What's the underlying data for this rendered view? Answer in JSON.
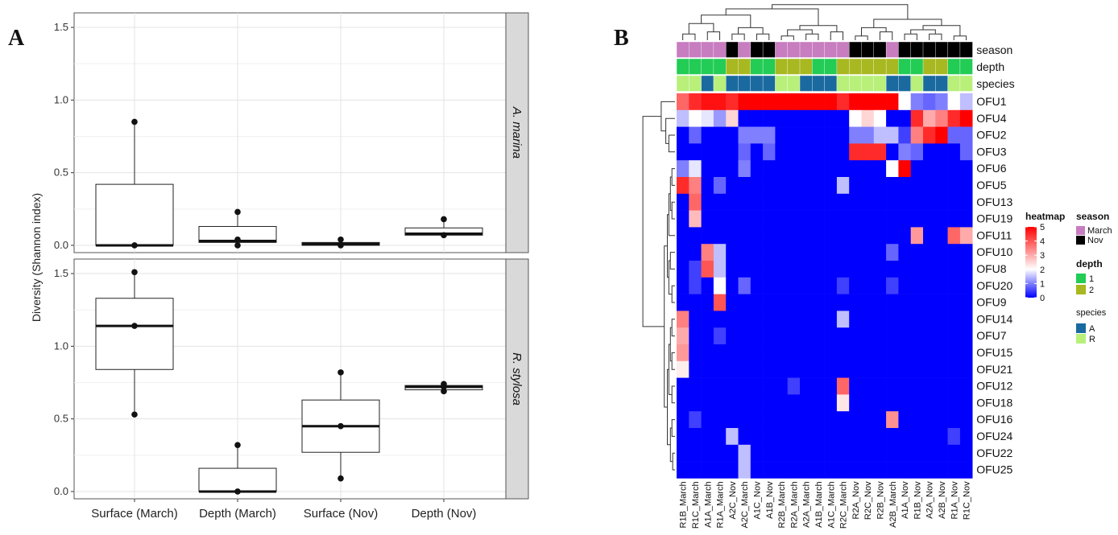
{
  "panels": {
    "a": "A",
    "b": "B"
  },
  "chart_data": [
    {
      "type": "box",
      "ylabel": "Diversity (Shannon index)",
      "ylim": [
        -0.05,
        1.6
      ],
      "yticks": [
        "0.0",
        "0.5",
        "1.0",
        "1.5"
      ],
      "categories": [
        "Surface (March)",
        "Depth (March)",
        "Surface (Nov)",
        "Depth (Nov)"
      ],
      "facets": [
        {
          "name": "A. marina",
          "boxes": [
            {
              "q1": 0.0,
              "median": 0.0,
              "q3": 0.42,
              "whisker_low": 0.0,
              "whisker_high": 0.85,
              "points": [
                0.85,
                0.0
              ]
            },
            {
              "q1": 0.02,
              "median": 0.03,
              "q3": 0.13,
              "whisker_low": 0.0,
              "whisker_high": 0.23,
              "points": [
                0.23,
                0.04,
                0.0
              ]
            },
            {
              "q1": 0.0,
              "median": 0.01,
              "q3": 0.02,
              "whisker_low": 0.0,
              "whisker_high": 0.04,
              "points": [
                0.04,
                0.0
              ]
            },
            {
              "q1": 0.07,
              "median": 0.08,
              "q3": 0.12,
              "whisker_low": 0.07,
              "whisker_high": 0.18,
              "points": [
                0.18,
                0.07
              ]
            }
          ]
        },
        {
          "name": "R. stylosa",
          "boxes": [
            {
              "q1": 0.84,
              "median": 1.14,
              "q3": 1.33,
              "whisker_low": 0.53,
              "whisker_high": 1.51,
              "points": [
                1.51,
                1.14,
                0.53
              ]
            },
            {
              "q1": 0.0,
              "median": 0.0,
              "q3": 0.16,
              "whisker_low": 0.0,
              "whisker_high": 0.32,
              "points": [
                0.32,
                0.0
              ]
            },
            {
              "q1": 0.27,
              "median": 0.45,
              "q3": 0.63,
              "whisker_low": 0.09,
              "whisker_high": 0.82,
              "points": [
                0.82,
                0.45,
                0.09
              ]
            },
            {
              "q1": 0.7,
              "median": 0.72,
              "q3": 0.73,
              "whisker_low": 0.69,
              "whisker_high": 0.74,
              "points": [
                0.74,
                0.72,
                0.69
              ]
            }
          ]
        }
      ]
    },
    {
      "type": "heatmap",
      "columns": [
        "R1B_March",
        "R1C_March",
        "A1A_March",
        "R1A_March",
        "A2C_Nov",
        "A2C_March",
        "A1C_Nov",
        "A1B_Nov",
        "R2B_March",
        "R2A_March",
        "A2A_March",
        "A1B_March",
        "A1C_March",
        "R2C_March",
        "R2A_Nov",
        "R2C_Nov",
        "R2B_Nov",
        "A2B_March",
        "A1A_Nov",
        "R1B_Nov",
        "A2A_Nov",
        "A2B_Nov",
        "R1A_Nov",
        "R1C_Nov"
      ],
      "rows": [
        "OFU1",
        "OFU4",
        "OFU2",
        "OFU3",
        "OFU6",
        "OFU5",
        "OFU13",
        "OFU19",
        "OFU11",
        "OFU10",
        "OFU8",
        "OFU20",
        "OFU9",
        "OFU14",
        "OFU7",
        "OFU15",
        "OFU21",
        "OFU12",
        "OFU18",
        "OFU16",
        "OFU24",
        "OFU22",
        "OFU25"
      ],
      "annotations": [
        {
          "name": "season",
          "values": [
            "March",
            "March",
            "March",
            "March",
            "Nov",
            "March",
            "Nov",
            "Nov",
            "March",
            "March",
            "March",
            "March",
            "March",
            "March",
            "Nov",
            "Nov",
            "Nov",
            "March",
            "Nov",
            "Nov",
            "Nov",
            "Nov",
            "Nov",
            "Nov"
          ]
        },
        {
          "name": "depth",
          "values": [
            "1",
            "1",
            "1",
            "1",
            "2",
            "2",
            "1",
            "1",
            "2",
            "2",
            "2",
            "1",
            "1",
            "2",
            "2",
            "2",
            "2",
            "2",
            "1",
            "1",
            "2",
            "2",
            "1",
            "1"
          ]
        },
        {
          "name": "species",
          "values": [
            "R",
            "R",
            "A",
            "R",
            "A",
            "A",
            "A",
            "A",
            "R",
            "R",
            "A",
            "A",
            "A",
            "R",
            "R",
            "R",
            "R",
            "A",
            "A",
            "R",
            "A",
            "A",
            "R",
            "R"
          ]
        }
      ],
      "legend": {
        "heatmap_title": "heatmap",
        "scale_ticks": [
          5,
          4,
          3,
          2,
          1,
          0
        ],
        "season_title": "season",
        "season_items": [
          "March",
          "Nov"
        ],
        "depth_title": "depth",
        "depth_items": [
          "1",
          "2"
        ],
        "species_title": "species",
        "species_items": [
          "A",
          "R"
        ]
      },
      "values": [
        [
          3.8,
          4.5,
          4.8,
          4.8,
          4.5,
          5,
          5,
          5,
          5,
          5,
          5,
          5,
          5,
          4.5,
          5,
          5,
          5,
          5,
          2,
          1,
          0.8,
          1,
          2,
          1.5
        ],
        [
          1.5,
          2,
          1.8,
          1.2,
          2.5,
          0,
          0,
          0,
          0,
          0,
          0,
          0,
          0,
          0,
          2,
          2.5,
          2,
          0,
          0,
          4.5,
          3,
          3.5,
          4.5,
          5
        ],
        [
          0,
          0.8,
          0,
          0,
          0,
          1,
          1,
          1,
          0,
          0,
          0,
          0,
          0,
          0,
          1,
          1,
          1.5,
          1.5,
          0.5,
          3.5,
          4.5,
          5,
          0.8,
          0.8
        ],
        [
          0,
          0,
          0,
          0,
          0,
          0.8,
          0,
          0.8,
          0,
          0,
          0,
          0,
          0,
          0,
          4.5,
          4.5,
          4.5,
          0,
          1,
          0.8,
          0,
          0,
          0,
          0.8
        ],
        [
          1,
          1.8,
          0,
          0,
          0,
          1,
          0,
          0,
          0,
          0,
          0,
          0,
          0,
          0,
          0,
          0,
          0,
          2,
          5,
          0,
          0,
          0,
          0,
          0
        ],
        [
          4.5,
          3.5,
          0,
          0.8,
          0,
          0,
          0,
          0,
          0,
          0,
          0,
          0,
          0,
          1.5,
          0,
          0,
          0,
          0,
          0,
          0,
          0,
          0,
          0,
          0
        ],
        [
          0,
          3.8,
          0,
          0,
          0,
          0,
          0,
          0,
          0,
          0,
          0,
          0,
          0,
          0,
          0,
          0,
          0,
          0,
          0,
          0,
          0,
          0,
          0,
          0
        ],
        [
          0,
          2.8,
          0,
          0,
          0,
          0,
          0,
          0,
          0,
          0,
          0,
          0,
          0,
          0,
          0,
          0,
          0,
          0,
          0,
          0,
          0,
          0,
          0,
          0
        ],
        [
          0,
          0,
          0,
          0,
          0,
          0,
          0,
          0,
          0,
          0,
          0,
          0,
          0,
          0,
          0,
          0,
          0,
          0,
          0,
          3.2,
          0,
          0,
          3.8,
          3
        ],
        [
          0,
          0,
          3.5,
          1.5,
          0,
          0,
          0,
          0,
          0,
          0,
          0,
          0,
          0,
          0,
          0,
          0,
          0,
          0.8,
          0,
          0,
          0,
          0,
          0,
          0
        ],
        [
          0,
          0.5,
          4,
          1.5,
          0,
          0,
          0,
          0,
          0,
          0,
          0,
          0,
          0,
          0,
          0,
          0,
          0,
          0,
          0,
          0,
          0,
          0,
          0,
          0
        ],
        [
          0,
          0.5,
          0,
          2,
          0,
          0.8,
          0,
          0,
          0,
          0,
          0,
          0,
          0,
          0.5,
          0,
          0,
          0,
          0.5,
          0,
          0,
          0,
          0,
          0,
          0
        ],
        [
          0,
          0,
          0,
          4,
          0,
          0,
          0,
          0,
          0,
          0,
          0,
          0,
          0,
          0,
          0,
          0,
          0,
          0,
          0,
          0,
          0,
          0,
          0,
          0
        ],
        [
          3.5,
          0,
          0,
          0,
          0,
          0,
          0,
          0,
          0,
          0,
          0,
          0,
          0,
          1.5,
          0,
          0,
          0,
          0,
          0,
          0,
          0,
          0,
          0,
          0
        ],
        [
          3,
          0,
          0,
          0.5,
          0,
          0,
          0,
          0,
          0,
          0,
          0,
          0,
          0,
          0,
          0,
          0,
          0,
          0,
          0,
          0,
          0,
          0,
          0,
          0
        ],
        [
          3.2,
          0,
          0,
          0,
          0,
          0,
          0,
          0,
          0,
          0,
          0,
          0,
          0,
          0,
          0,
          0,
          0,
          0,
          0,
          0,
          0,
          0,
          0,
          0
        ],
        [
          2.2,
          0,
          0,
          0,
          0,
          0,
          0,
          0,
          0,
          0,
          0,
          0,
          0,
          0,
          0,
          0,
          0,
          0,
          0,
          0,
          0,
          0,
          0,
          0
        ],
        [
          0,
          0,
          0,
          0,
          0,
          0,
          0,
          0,
          0,
          0.5,
          0,
          0,
          0,
          3.8,
          0,
          0,
          0,
          0,
          0,
          0,
          0,
          0,
          0,
          0
        ],
        [
          0,
          0,
          0,
          0,
          0,
          0,
          0,
          0,
          0,
          0,
          0,
          0,
          0,
          2.3,
          0,
          0,
          0,
          0,
          0,
          0,
          0,
          0,
          0,
          0
        ],
        [
          0,
          0.5,
          0,
          0,
          0,
          0,
          0,
          0,
          0,
          0,
          0,
          0,
          0,
          0,
          0,
          0,
          0,
          3.3,
          0,
          0,
          0,
          0,
          0,
          0
        ],
        [
          0,
          0,
          0,
          0,
          1.5,
          0,
          0,
          0,
          0,
          0,
          0,
          0,
          0,
          0,
          0,
          0,
          0,
          0,
          0,
          0,
          0,
          0,
          0.5,
          0
        ],
        [
          0,
          0,
          0,
          0,
          0,
          1.5,
          0,
          0,
          0,
          0,
          0,
          0,
          0,
          0,
          0,
          0,
          0,
          0,
          0,
          0,
          0,
          0,
          0,
          0
        ],
        [
          0,
          0,
          0,
          0,
          0,
          1.5,
          0,
          0,
          0,
          0,
          0,
          0,
          0,
          0,
          0,
          0,
          0,
          0,
          0,
          0,
          0,
          0,
          0,
          0
        ]
      ]
    }
  ],
  "colors": {
    "march": "#c77dc0",
    "nov": "#000000",
    "depth1": "#22cc55",
    "depth2": "#a8b820",
    "speciesA": "#1a6aa0",
    "speciesR": "#b8f07a",
    "heat_low": "#0000ff",
    "heat_mid": "#ffffff",
    "heat_high": "#ff0000"
  }
}
